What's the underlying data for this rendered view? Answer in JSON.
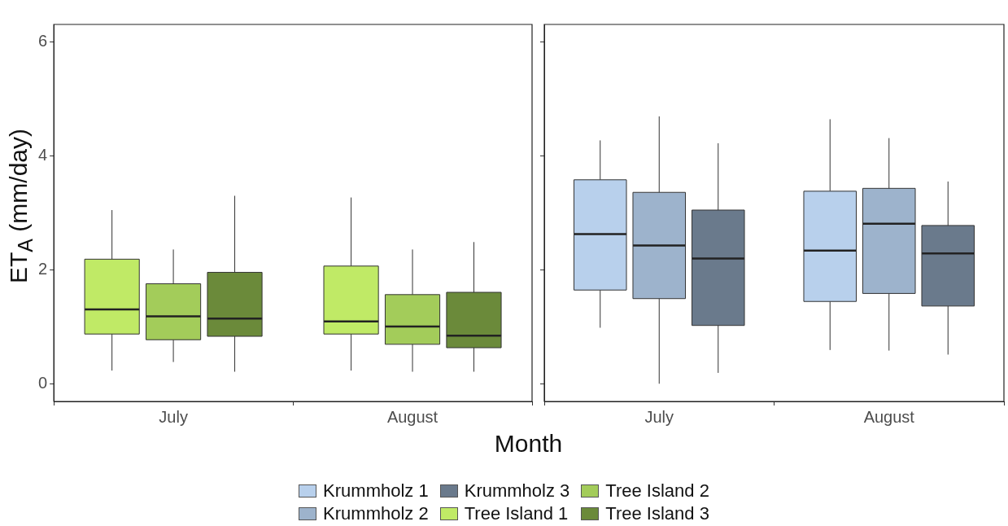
{
  "chart_data": [
    {
      "type": "box",
      "categories": [
        "July",
        "August"
      ],
      "ylabel": "ET$_{A}$ (mm/day)",
      "xlabel": "Month",
      "ylim": [
        -0.3,
        6.3
      ],
      "yticks": [
        0,
        2,
        4,
        6
      ],
      "legend": "bottom",
      "series": [
        {
          "name": "Tree Island 1",
          "color": "#c0ea66",
          "boxes": [
            {
              "low": 0.24,
              "q1": 0.88,
              "median": 1.31,
              "q3": 2.19,
              "high": 3.05
            },
            {
              "low": 0.24,
              "q1": 0.88,
              "median": 1.1,
              "q3": 2.07,
              "high": 3.27
            }
          ]
        },
        {
          "name": "Tree Island 2",
          "color": "#a3cc5a",
          "boxes": [
            {
              "low": 0.39,
              "q1": 0.78,
              "median": 1.19,
              "q3": 1.76,
              "high": 2.36
            },
            {
              "low": 0.22,
              "q1": 0.7,
              "median": 1.01,
              "q3": 1.57,
              "high": 2.36
            }
          ]
        },
        {
          "name": "Tree Island 3",
          "color": "#6b8a3a",
          "boxes": [
            {
              "low": 0.22,
              "q1": 0.84,
              "median": 1.15,
              "q3": 1.96,
              "high": 3.3
            },
            {
              "low": 0.22,
              "q1": 0.64,
              "median": 0.85,
              "q3": 1.61,
              "high": 2.49
            }
          ]
        }
      ]
    },
    {
      "type": "box",
      "categories": [
        "July",
        "August"
      ],
      "ylim": [
        -0.3,
        6.3
      ],
      "yticks": [
        0,
        2,
        4,
        6
      ],
      "tick_labels": "x",
      "legend": "bottom",
      "series": [
        {
          "name": "Krummholz 1",
          "color": "#b8d0ec",
          "boxes": [
            {
              "low": 0.99,
              "q1": 1.65,
              "median": 2.63,
              "q3": 3.58,
              "high": 4.27
            },
            {
              "low": 0.6,
              "q1": 1.45,
              "median": 2.34,
              "q3": 3.38,
              "high": 4.64
            }
          ]
        },
        {
          "name": "Krummholz 2",
          "color": "#9db3cc",
          "boxes": [
            {
              "low": 0.01,
              "q1": 1.5,
              "median": 2.43,
              "q3": 3.36,
              "high": 4.69
            },
            {
              "low": 0.59,
              "q1": 1.59,
              "median": 2.81,
              "q3": 3.43,
              "high": 4.31
            }
          ]
        },
        {
          "name": "Krummholz 3",
          "color": "#6a7a8c",
          "boxes": [
            {
              "low": 0.2,
              "q1": 1.03,
              "median": 2.2,
              "q3": 3.05,
              "high": 4.22
            },
            {
              "low": 0.52,
              "q1": 1.37,
              "median": 2.29,
              "q3": 2.78,
              "high": 3.55
            }
          ]
        }
      ]
    }
  ]
}
